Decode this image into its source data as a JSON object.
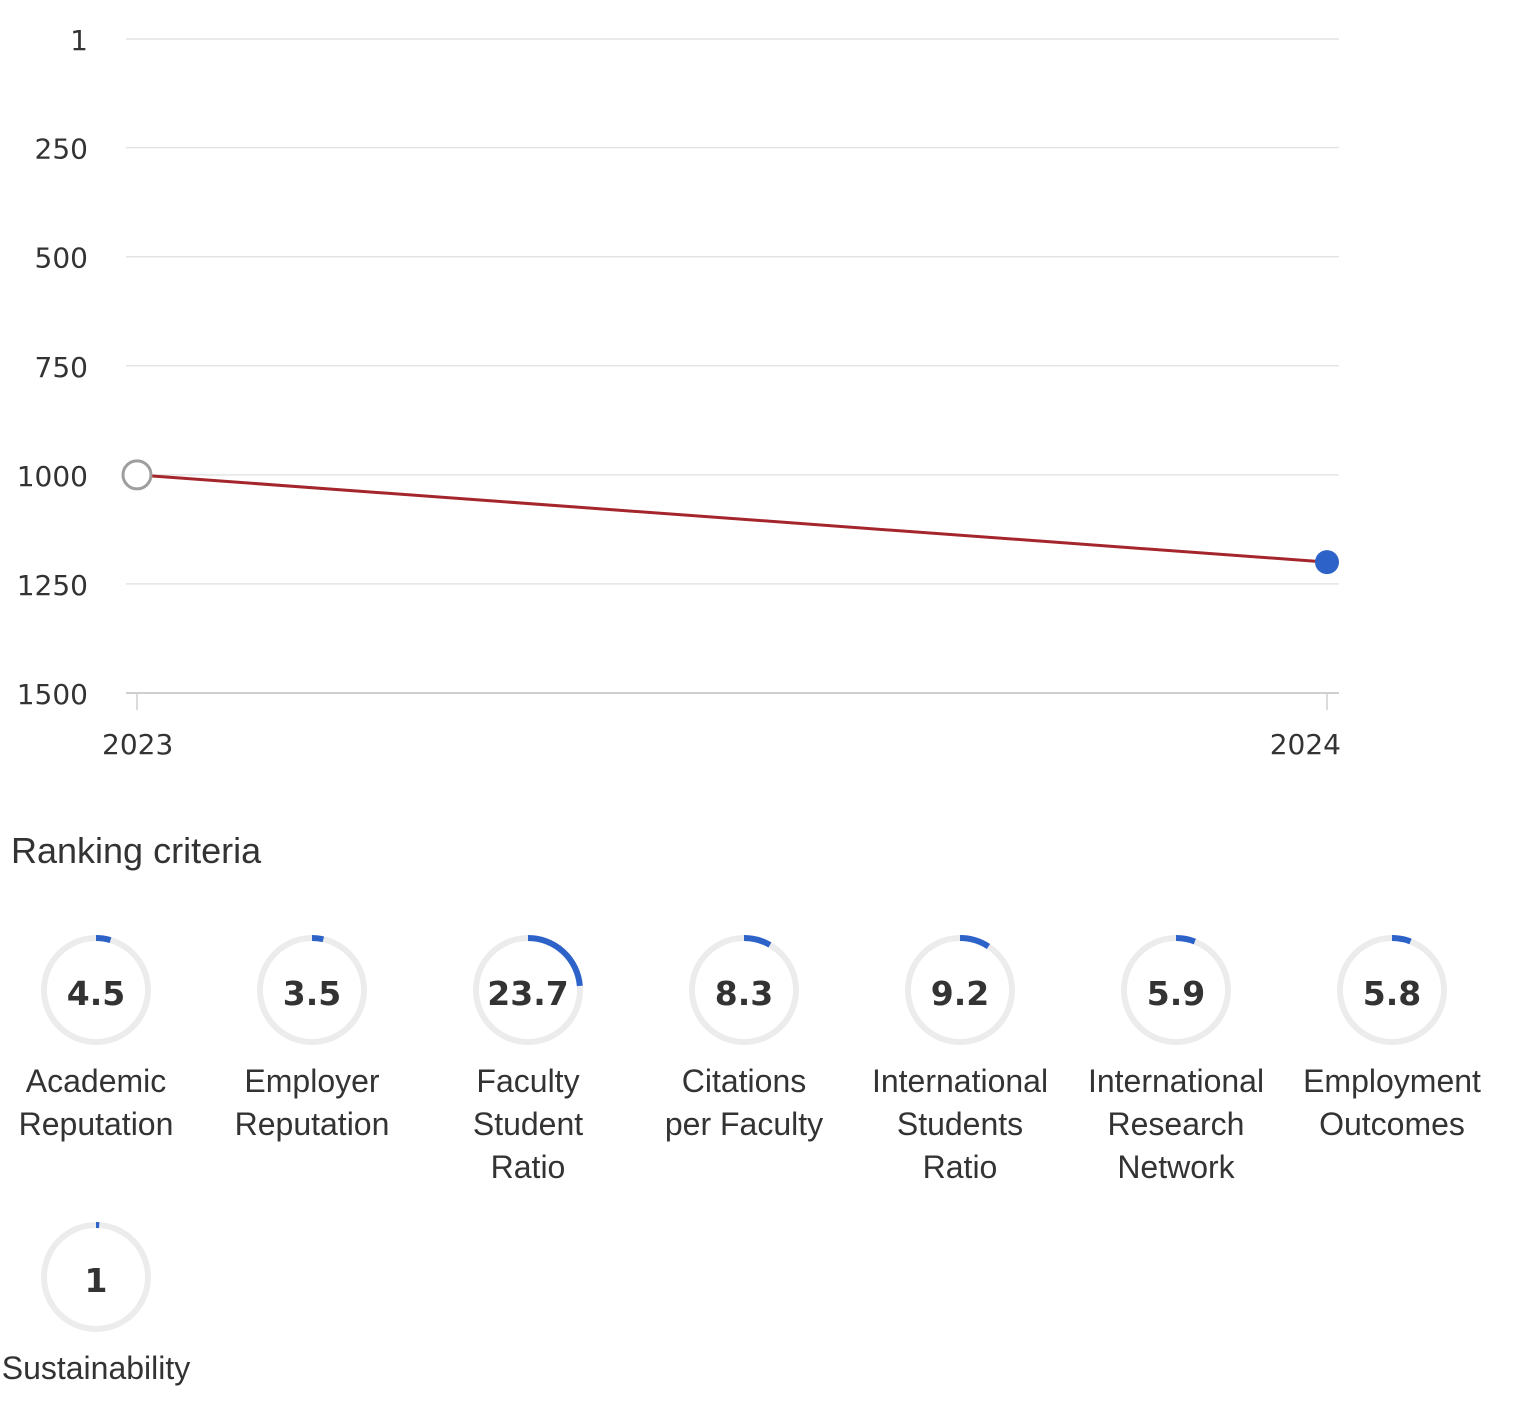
{
  "chart_data": {
    "type": "line",
    "x": [
      "2023",
      "2024"
    ],
    "series": [
      {
        "values": [
          1000,
          1200
        ]
      }
    ],
    "y_ticks": [
      "1",
      "250",
      "500",
      "750",
      "1000",
      "1250",
      "1500"
    ],
    "ylim": [
      1,
      1500
    ],
    "y_axis_reversed": true,
    "grid": true,
    "line_color": "#a4262c",
    "first_point_color": "#9e9e9e",
    "last_point_color": "#2d63c8"
  },
  "criteria_section": {
    "title": "Ranking criteria",
    "ring_color": "#2d63c8",
    "track_color": "#ececec",
    "items": [
      {
        "value": "4.5",
        "label": "Academic\nReputation",
        "fraction": 0.045
      },
      {
        "value": "3.5",
        "label": "Employer\nReputation",
        "fraction": 0.035
      },
      {
        "value": "23.7",
        "label": "Faculty\nStudent\nRatio",
        "fraction": 0.237
      },
      {
        "value": "8.3",
        "label": "Citations\nper Faculty",
        "fraction": 0.083
      },
      {
        "value": "9.2",
        "label": "International\nStudents\nRatio",
        "fraction": 0.092
      },
      {
        "value": "5.9",
        "label": "International\nResearch\nNetwork",
        "fraction": 0.059
      },
      {
        "value": "5.8",
        "label": "Employment\nOutcomes",
        "fraction": 0.058
      },
      {
        "value": "1",
        "label": "Sustainability",
        "fraction": 0.01
      }
    ]
  }
}
